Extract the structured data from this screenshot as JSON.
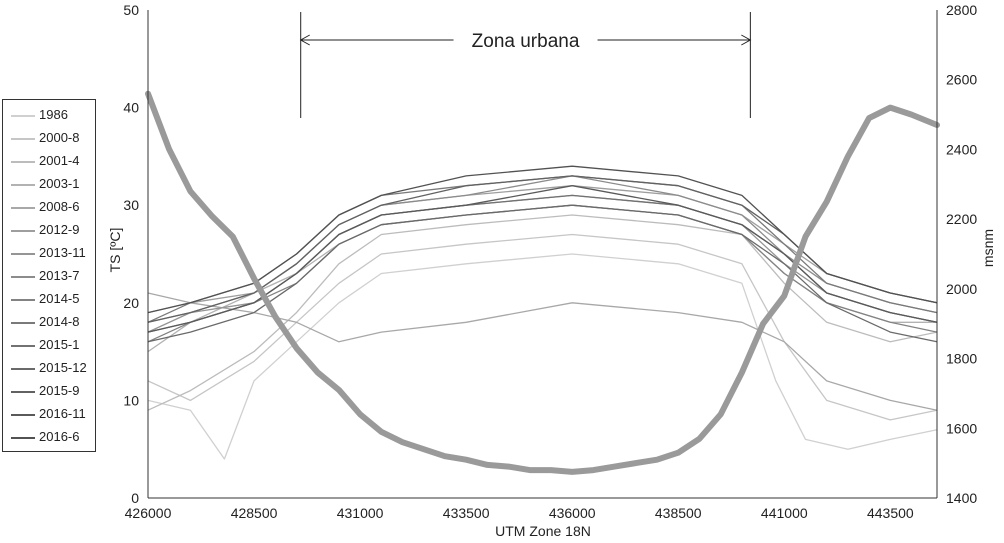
{
  "chart_data": {
    "type": "line",
    "xlabel": "UTM Zone 18N",
    "ylabel": "TS [ºC]",
    "y2label": "msnm",
    "xlim": [
      426000,
      444600
    ],
    "ylim": [
      0,
      50
    ],
    "y2lim": [
      1400,
      2800
    ],
    "x_ticks": [
      "426000",
      "428500",
      "431000",
      "433500",
      "436000",
      "438500",
      "441000",
      "443500"
    ],
    "y_ticks": [
      "0",
      "10",
      "20",
      "30",
      "40",
      "50"
    ],
    "y2_ticks": [
      "1400",
      "1600",
      "1800",
      "2000",
      "2200",
      "2400",
      "2600",
      "2800"
    ],
    "grid": false,
    "legend_position": "left",
    "annotation": {
      "text": "Zona urbana",
      "x_start": 429600,
      "x_end": 440200
    },
    "legend": [
      "1986",
      "2000-8",
      "2001-4",
      "2003-1",
      "2008-6",
      "2012-9",
      "2013-11",
      "2013-7",
      "2014-5",
      "2014-8",
      "2015-1",
      "2015-12",
      "2015-9",
      "2016-11",
      "2016-6"
    ],
    "series_colors": [
      "#d0d0d0",
      "#c6c6c6",
      "#bcbcbc",
      "#b2b2b2",
      "#a8a8a8",
      "#9e9e9e",
      "#959595",
      "#8c8c8c",
      "#838383",
      "#7a7a7a",
      "#727272",
      "#6a6a6a",
      "#626262",
      "#5a5a5a",
      "#525252"
    ],
    "series": [
      {
        "name": "1986",
        "x": [
          426000,
          427000,
          427800,
          428500,
          429500,
          430500,
          431500,
          433500,
          436000,
          438500,
          440000,
          440800,
          441500,
          442500,
          443500,
          444600
        ],
        "y": [
          10,
          9,
          4,
          12,
          16,
          20,
          23,
          24,
          25,
          24,
          22,
          12,
          6,
          5,
          6,
          7
        ]
      },
      {
        "name": "2000-8",
        "x": [
          426000,
          427000,
          428500,
          429500,
          430500,
          431500,
          433500,
          436000,
          438500,
          440000,
          441000,
          442000,
          443500,
          444600
        ],
        "y": [
          12,
          10,
          14,
          18,
          22,
          25,
          26,
          27,
          26,
          24,
          16,
          10,
          8,
          9
        ]
      },
      {
        "name": "2001-4",
        "x": [
          426000,
          427000,
          428500,
          429500,
          430500,
          431500,
          433500,
          436000,
          438500,
          440000,
          441000,
          442000,
          443500,
          444600
        ],
        "y": [
          9,
          11,
          15,
          19,
          24,
          27,
          28,
          29,
          28,
          27,
          22,
          18,
          16,
          17
        ]
      },
      {
        "name": "2003-1",
        "x": [
          426000,
          427000,
          428500,
          429500,
          430500,
          431500,
          433500,
          436000,
          438500,
          440000,
          441000,
          442000,
          443500,
          444600
        ],
        "y": [
          15,
          18,
          21,
          23,
          26,
          28,
          29,
          30,
          29,
          27,
          23,
          20,
          18,
          18
        ]
      },
      {
        "name": "2008-6",
        "x": [
          426000,
          427000,
          428500,
          429500,
          430500,
          431500,
          433500,
          436000,
          438500,
          440000,
          441000,
          442000,
          443500,
          444600
        ],
        "y": [
          21,
          20,
          19,
          18,
          16,
          17,
          18,
          20,
          19,
          18,
          16,
          12,
          10,
          9
        ]
      },
      {
        "name": "2012-9",
        "x": [
          426000,
          427000,
          428500,
          429500,
          430500,
          431500,
          433500,
          436000,
          438500,
          440000,
          441000,
          442000,
          443500,
          444600
        ],
        "y": [
          19,
          20,
          21,
          24,
          28,
          30,
          31,
          32,
          31,
          29,
          26,
          23,
          21,
          20
        ]
      },
      {
        "name": "2013-11",
        "x": [
          426000,
          427000,
          428500,
          429500,
          430500,
          431500,
          433500,
          436000,
          438500,
          440000,
          441000,
          442000,
          443500,
          444600
        ],
        "y": [
          17,
          19,
          20,
          23,
          27,
          29,
          30,
          31,
          30,
          28,
          24,
          21,
          19,
          18
        ]
      },
      {
        "name": "2013-7",
        "x": [
          426000,
          427000,
          428500,
          429500,
          430500,
          431500,
          433500,
          436000,
          438500,
          440000,
          441000,
          442000,
          443500,
          444600
        ],
        "y": [
          18,
          19,
          21,
          24,
          28,
          30,
          31,
          33,
          31,
          29,
          25,
          22,
          20,
          19
        ]
      },
      {
        "name": "2014-5",
        "x": [
          426000,
          427000,
          428500,
          429500,
          430500,
          431500,
          433500,
          436000,
          438500,
          440000,
          441000,
          442000,
          443500,
          444600
        ],
        "y": [
          16,
          18,
          20,
          22,
          26,
          28,
          29,
          30,
          29,
          27,
          23,
          20,
          18,
          17
        ]
      },
      {
        "name": "2014-8",
        "x": [
          426000,
          427000,
          428500,
          429500,
          430500,
          431500,
          433500,
          436000,
          438500,
          440000,
          441000,
          442000,
          443500,
          444600
        ],
        "y": [
          18,
          20,
          22,
          25,
          29,
          31,
          32,
          33,
          32,
          30,
          26,
          22,
          20,
          19
        ]
      },
      {
        "name": "2015-1",
        "x": [
          426000,
          427000,
          428500,
          429500,
          430500,
          431500,
          433500,
          436000,
          438500,
          440000,
          441000,
          442000,
          443500,
          444600
        ],
        "y": [
          17,
          18,
          20,
          23,
          27,
          29,
          30,
          31,
          30,
          28,
          25,
          21,
          19,
          18
        ]
      },
      {
        "name": "2015-12",
        "x": [
          426000,
          427000,
          428500,
          429500,
          430500,
          431500,
          433500,
          436000,
          438500,
          440000,
          441000,
          442000,
          443500,
          444600
        ],
        "y": [
          16,
          17,
          19,
          22,
          26,
          28,
          29,
          30,
          29,
          27,
          24,
          20,
          17,
          16
        ]
      },
      {
        "name": "2015-9",
        "x": [
          426000,
          427000,
          428500,
          429500,
          430500,
          431500,
          433500,
          436000,
          438500,
          440000,
          441000,
          442000,
          443500,
          444600
        ],
        "y": [
          18,
          19,
          21,
          24,
          28,
          30,
          32,
          33,
          32,
          30,
          27,
          23,
          21,
          20
        ]
      },
      {
        "name": "2016-11",
        "x": [
          426000,
          427000,
          428500,
          429500,
          430500,
          431500,
          433500,
          436000,
          438500,
          440000,
          441000,
          442000,
          443500,
          444600
        ],
        "y": [
          17,
          18,
          20,
          23,
          27,
          29,
          30,
          32,
          30,
          28,
          25,
          21,
          19,
          18
        ]
      },
      {
        "name": "2016-6",
        "x": [
          426000,
          427000,
          428500,
          429500,
          430500,
          431500,
          433500,
          436000,
          438500,
          440000,
          441000,
          442000,
          443500,
          444600
        ],
        "y": [
          19,
          20,
          22,
          25,
          29,
          31,
          33,
          34,
          33,
          31,
          27,
          23,
          21,
          20
        ]
      }
    ],
    "elevation": {
      "axis": "y2",
      "x": [
        426000,
        426500,
        427000,
        427500,
        428000,
        428500,
        429000,
        429500,
        430000,
        430500,
        431000,
        431500,
        432000,
        432500,
        433000,
        433500,
        434000,
        434500,
        435000,
        435500,
        436000,
        436500,
        437000,
        437500,
        438000,
        438500,
        439000,
        439500,
        440000,
        440500,
        441000,
        441500,
        442000,
        442500,
        443000,
        443500,
        444000,
        444600
      ],
      "y": [
        2560,
        2400,
        2280,
        2210,
        2150,
        2030,
        1920,
        1830,
        1760,
        1710,
        1640,
        1590,
        1560,
        1540,
        1520,
        1510,
        1495,
        1490,
        1480,
        1480,
        1475,
        1480,
        1490,
        1500,
        1510,
        1530,
        1570,
        1640,
        1760,
        1900,
        1980,
        2150,
        2250,
        2380,
        2490,
        2520,
        2500,
        2470
      ]
    }
  }
}
